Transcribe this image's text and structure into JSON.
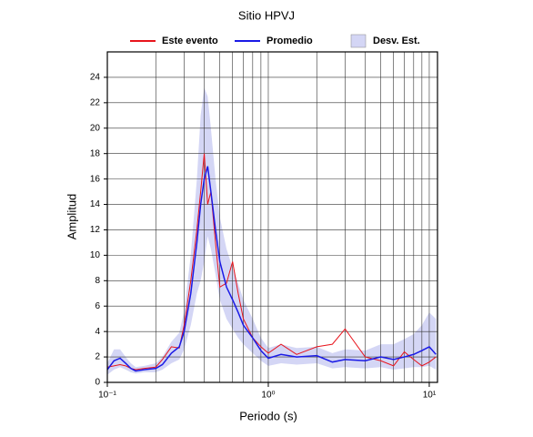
{
  "chart_data": {
    "type": "line",
    "title": "Sitio HPVJ",
    "xlabel": "Periodo (s)",
    "ylabel": "Amplitud",
    "x": [
      0.1,
      0.11,
      0.12,
      0.13,
      0.14,
      0.15,
      0.17,
      0.2,
      0.22,
      0.25,
      0.28,
      0.3,
      0.33,
      0.36,
      0.38,
      0.4,
      0.42,
      0.44,
      0.47,
      0.5,
      0.55,
      0.6,
      0.65,
      0.7,
      0.8,
      0.9,
      1.0,
      1.2,
      1.5,
      2.0,
      2.5,
      3,
      4,
      5,
      6,
      7,
      8,
      9,
      10,
      11
    ],
    "series": [
      {
        "name": "Este evento",
        "color": "#e8141c",
        "values": [
          1.2,
          1.3,
          1.4,
          1.3,
          1.1,
          1.0,
          1.1,
          1.2,
          1.8,
          2.8,
          2.7,
          4.5,
          8,
          12,
          15,
          18,
          14,
          15,
          11,
          7.5,
          7.8,
          9.5,
          7,
          5,
          3.5,
          2.8,
          2.3,
          3.0,
          2.2,
          2.8,
          3.0,
          4.2,
          2.0,
          1.7,
          1.3,
          2.4,
          1.8,
          1.3,
          1.6,
          2.0
        ]
      },
      {
        "name": "Promedio",
        "color": "#1a1ae6",
        "values": [
          1.0,
          1.7,
          1.9,
          1.5,
          1.1,
          0.9,
          1.0,
          1.1,
          1.4,
          2.3,
          2.8,
          4.0,
          7,
          11,
          14,
          16,
          17,
          15,
          12,
          9.5,
          7.5,
          6.5,
          5.5,
          4.5,
          3.5,
          2.5,
          1.9,
          2.2,
          2.0,
          2.1,
          1.6,
          1.8,
          1.7,
          2.0,
          1.8,
          2.0,
          2.2,
          2.5,
          2.8,
          2.2
        ]
      },
      {
        "name": "Desv. Est.",
        "color": "#d4d6f5",
        "type": "band",
        "upper": [
          1.5,
          2.6,
          2.6,
          2.0,
          1.5,
          1.2,
          1.3,
          1.5,
          2.0,
          3.2,
          3.9,
          5.6,
          10,
          16,
          21,
          23.2,
          22.5,
          20,
          16,
          13,
          10.5,
          9,
          7.8,
          6.5,
          5,
          3.5,
          2.7,
          3.0,
          2.7,
          2.8,
          2.3,
          2.6,
          2.5,
          3.0,
          3.0,
          3.4,
          3.8,
          4.5,
          5.5,
          5.0
        ],
        "lower": [
          0.6,
          1.0,
          1.2,
          1.0,
          0.8,
          0.7,
          0.8,
          0.8,
          1.0,
          1.5,
          1.8,
          2.6,
          4.5,
          7,
          8,
          9.5,
          11.5,
          10.5,
          8.5,
          6.5,
          5,
          4.2,
          3.5,
          3.0,
          2.3,
          1.7,
          1.3,
          1.5,
          1.4,
          1.5,
          1.1,
          1.2,
          1.1,
          1.2,
          1.0,
          1.1,
          1.2,
          1.2,
          1.3,
          1.0
        ]
      }
    ],
    "xscale": "log",
    "xlim": [
      0.1,
      11.25
    ],
    "ylim": [
      0,
      26
    ],
    "xticks": [
      {
        "value": 0.1,
        "label": "10⁻¹"
      },
      {
        "value": 1,
        "label": "10⁰"
      },
      {
        "value": 10,
        "label": "10¹"
      }
    ],
    "x_minor_ticks": [
      0.2,
      0.3,
      0.4,
      0.5,
      0.6,
      0.7,
      0.8,
      0.9,
      2,
      3,
      4,
      5,
      6,
      7,
      8,
      9
    ],
    "yticks": [
      0,
      2,
      4,
      6,
      8,
      10,
      12,
      14,
      16,
      18,
      20,
      22,
      24
    ],
    "grid": true
  }
}
